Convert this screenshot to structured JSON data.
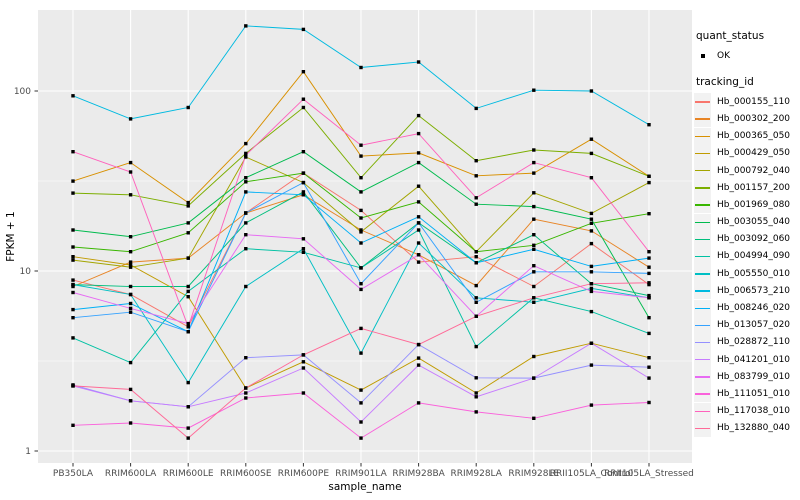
{
  "figure": {
    "background": "#FFFFFF",
    "panel_background": "#EBEBEB",
    "grid_color": "#FFFFFF",
    "axis_text_color": "#4D4D4D",
    "tick_color": "#333333",
    "title_color": "#000000",
    "marker_color": "#000000"
  },
  "axes": {
    "x_label": "sample_name",
    "y_label": "FPKM + 1",
    "y_tick_labels": [
      "1",
      "10",
      "100"
    ],
    "y_tick_values": [
      1,
      10,
      100
    ],
    "y_minor_values": [
      3.1623,
      31.623
    ]
  },
  "legend": {
    "quant_title": "quant_status",
    "quant_items": [
      {
        "label": "OK",
        "marker": "filled-square-icon"
      }
    ],
    "tracking_title": "tracking_id"
  },
  "chart_data": {
    "type": "line",
    "title": "",
    "xlabel": "sample_name",
    "ylabel": "FPKM + 1",
    "y_scale": "log10",
    "ylim": [
      0.86,
      282
    ],
    "grid": true,
    "legend_position": "right",
    "marker": "filled-square",
    "x_categories": [
      "PB350LA",
      "RRIM600LA",
      "RRIM600LE",
      "RRIM600SE",
      "RRIM600PE",
      "RRIM901LA",
      "RRIM928BA",
      "RRIM928LA",
      "RRIM928LE",
      "RRII105LA_Control",
      "RRII105LA_Stressed"
    ],
    "series": [
      {
        "name": "Hb_000155_110",
        "color": "#F8766D",
        "values": [
          8.9,
          7.4,
          4.9,
          21,
          35,
          21.7,
          11.2,
          12.0,
          8.2,
          14.2,
          8.4
        ]
      },
      {
        "name": "Hb_000302_200",
        "color": "#E88526",
        "values": [
          8.2,
          11.2,
          11.8,
          21,
          26.5,
          16.9,
          12.3,
          8.3,
          19.4,
          16.7,
          10.5
        ]
      },
      {
        "name": "Hb_000365_050",
        "color": "#D89000",
        "values": [
          31.6,
          40,
          24,
          51,
          128,
          43.5,
          45.3,
          33.8,
          35,
          54,
          33.6
        ]
      },
      {
        "name": "Hb_000429_050",
        "color": "#C09B00",
        "values": [
          12,
          10.8,
          7.2,
          2.24,
          3.13,
          2.18,
          3.28,
          2.1,
          3.35,
          3.97,
          3.3
        ]
      },
      {
        "name": "Hb_000792_040",
        "color": "#A3A500",
        "values": [
          11.5,
          10.5,
          11.8,
          43,
          31,
          16.5,
          29.6,
          12.8,
          27.2,
          20.9,
          31
        ]
      },
      {
        "name": "Hb_001157_200",
        "color": "#7CAE00",
        "values": [
          27.1,
          26.5,
          23,
          45,
          81,
          33,
          73,
          41,
          47,
          45,
          33.6
        ]
      },
      {
        "name": "Hb_001969_080",
        "color": "#39B600",
        "values": [
          13.6,
          12.8,
          16.3,
          31.3,
          35,
          19.7,
          24.2,
          12.8,
          13.9,
          18.4,
          20.8
        ]
      },
      {
        "name": "Hb_003055_040",
        "color": "#00BB4E",
        "values": [
          16.9,
          15.5,
          18.5,
          33,
          46,
          27.5,
          40,
          23.5,
          22.8,
          19.4,
          5.5
        ]
      },
      {
        "name": "Hb_003092_060",
        "color": "#00BF7D",
        "values": [
          8.4,
          8.2,
          8.2,
          18.5,
          27.5,
          10.4,
          18.5,
          11.1,
          15.9,
          8.5,
          7.3
        ]
      },
      {
        "name": "Hb_004994_090",
        "color": "#00C1A3",
        "values": [
          4.25,
          3.1,
          7.7,
          13.3,
          12.7,
          10.4,
          16.9,
          3.8,
          7.1,
          5.95,
          4.5
        ]
      },
      {
        "name": "Hb_005550_010",
        "color": "#00BFC4",
        "values": [
          8.4,
          7.4,
          2.4,
          8.2,
          13.3,
          3.5,
          14.3,
          7.1,
          6.7,
          8.0,
          7.1
        ]
      },
      {
        "name": "Hb_006573_210",
        "color": "#00BAE0",
        "values": [
          94,
          70,
          81,
          230,
          220,
          135,
          145,
          80,
          101,
          100,
          65
        ]
      },
      {
        "name": "Hb_008246_020",
        "color": "#00B0F6",
        "values": [
          6.1,
          6.6,
          4.6,
          27.5,
          26.5,
          14.3,
          20,
          11.1,
          13.2,
          10.6,
          11.8
        ]
      },
      {
        "name": "Hb_013057_020",
        "color": "#35A2FF",
        "values": [
          5.5,
          5.9,
          4.6,
          21,
          31,
          8.5,
          18.5,
          6.7,
          9.9,
          9.9,
          9.7
        ]
      },
      {
        "name": "Hb_028872_110",
        "color": "#9590FF",
        "values": [
          2.33,
          1.9,
          1.76,
          3.3,
          3.42,
          1.85,
          3.9,
          2.55,
          2.54,
          3.0,
          2.92
        ]
      },
      {
        "name": "Hb_041201_010",
        "color": "#C77CFF",
        "values": [
          2.3,
          1.9,
          1.76,
          2.1,
          2.89,
          1.45,
          3.0,
          2.0,
          2.54,
          3.97,
          2.54
        ]
      },
      {
        "name": "Hb_083799_010",
        "color": "#E76BF3",
        "values": [
          7.6,
          6.2,
          5.1,
          15.9,
          15.1,
          7.9,
          12.3,
          5.6,
          10.7,
          7.7,
          7.1
        ]
      },
      {
        "name": "Hb_111051_010",
        "color": "#FA62DB",
        "values": [
          1.39,
          1.43,
          1.34,
          1.97,
          2.1,
          1.18,
          1.85,
          1.65,
          1.52,
          1.8,
          1.86
        ]
      },
      {
        "name": "Hb_117038_010",
        "color": "#FF62BC",
        "values": [
          46,
          35.5,
          4.9,
          44,
          90,
          50,
          58,
          25.5,
          40,
          33,
          12.8
        ]
      },
      {
        "name": "Hb_132880_040",
        "color": "#FF6A98",
        "values": [
          2.3,
          2.2,
          1.18,
          2.24,
          3.42,
          4.8,
          3.9,
          5.6,
          7.1,
          8.5,
          8.6
        ]
      }
    ]
  }
}
